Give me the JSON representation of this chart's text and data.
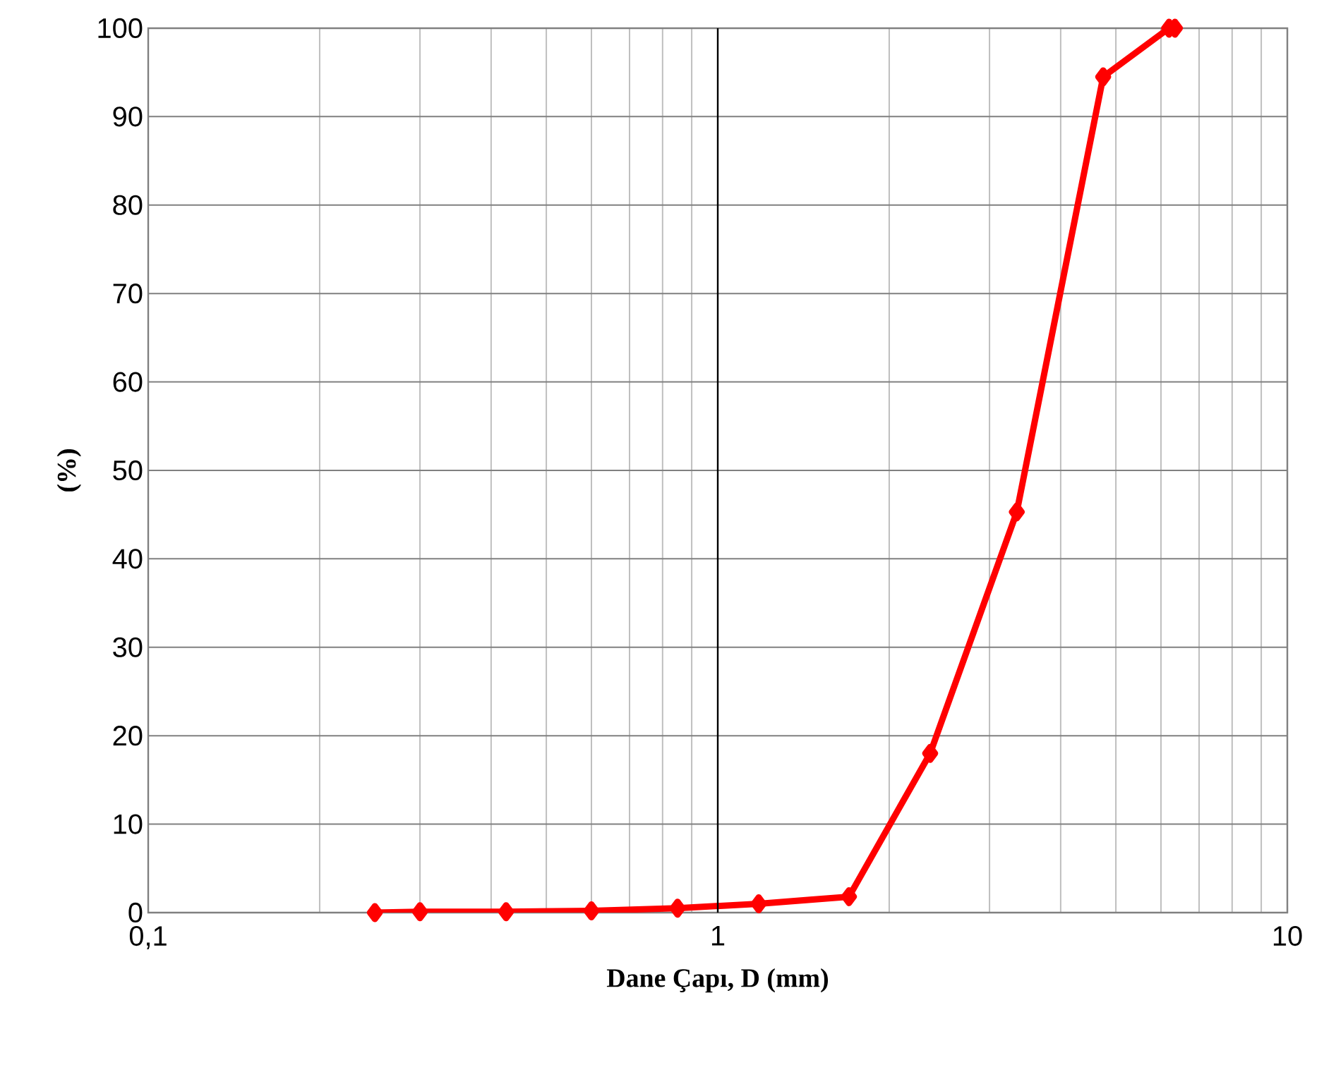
{
  "chart_data": {
    "type": "line",
    "xlabel": "Dane Çapı, D (mm)",
    "ylabel": "(%)",
    "log": "x",
    "xlim": [
      0.1,
      10
    ],
    "xticks": [
      {
        "value": 0.1,
        "label": "0,1"
      },
      1,
      10
    ],
    "ylim": [
      0,
      100
    ],
    "yticks": [
      0,
      10,
      20,
      30,
      40,
      50,
      60,
      70,
      80,
      90,
      100
    ],
    "grid": true,
    "legend": false,
    "ref_lines": [
      {
        "axis": "x",
        "value": 1,
        "color": "#000000"
      }
    ],
    "marker": "diamond",
    "line_style": "solid",
    "series": [
      {
        "color": "#ff0000",
        "x": [
          0.25,
          0.3,
          0.425,
          0.6,
          0.85,
          1.18,
          1.7,
          2.36,
          3.35,
          4.75,
          6.2,
          6.35
        ],
        "values": [
          0,
          0.1,
          0.1,
          0.2,
          0.5,
          1.0,
          1.8,
          18,
          45.3,
          94.5,
          100,
          100
        ]
      }
    ]
  }
}
